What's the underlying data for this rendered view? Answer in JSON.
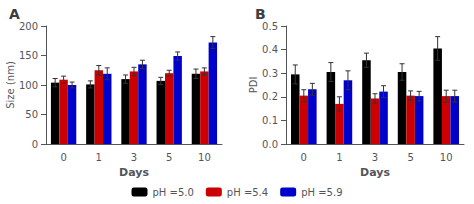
{
  "chart_data": [
    {
      "type": "bar",
      "title": "A",
      "xlabel": "Days",
      "ylabel": "Size (nm)",
      "categories": [
        "0",
        "1",
        "3",
        "5",
        "10"
      ],
      "series": [
        {
          "name": "pH =5.0",
          "color": "#000000",
          "values": [
            104,
            101,
            110,
            107,
            119
          ],
          "errors": [
            7,
            6,
            7,
            6,
            8
          ]
        },
        {
          "name": "pH =5.4",
          "color": "#cc0000",
          "values": [
            109,
            125,
            123,
            120,
            123
          ],
          "errors": [
            6,
            8,
            7,
            5,
            6
          ]
        },
        {
          "name": "pH =5.9",
          "color": "#0000cc",
          "values": [
            100,
            119,
            135,
            149,
            172
          ],
          "errors": [
            5,
            10,
            7,
            7,
            10
          ]
        }
      ],
      "ylim": [
        0,
        200
      ],
      "yticks": [
        0,
        50,
        100,
        150,
        200
      ],
      "grid": false,
      "legend": "bottom"
    },
    {
      "type": "bar",
      "title": "B",
      "xlabel": "Days",
      "ylabel": "PDI",
      "categories": [
        "0",
        "1",
        "3",
        "5",
        "10"
      ],
      "series": [
        {
          "name": "pH =5.0",
          "color": "#000000",
          "values": [
            0.295,
            0.305,
            0.355,
            0.305,
            0.405
          ],
          "errors": [
            0.04,
            0.04,
            0.03,
            0.035,
            0.05
          ]
        },
        {
          "name": "pH =5.4",
          "color": "#cc0000",
          "values": [
            0.205,
            0.17,
            0.193,
            0.205,
            0.203
          ],
          "errors": [
            0.025,
            0.03,
            0.02,
            0.02,
            0.025
          ]
        },
        {
          "name": "pH =5.9",
          "color": "#0000cc",
          "values": [
            0.232,
            0.27,
            0.222,
            0.203,
            0.203
          ],
          "errors": [
            0.025,
            0.04,
            0.025,
            0.02,
            0.025
          ]
        }
      ],
      "ylim": [
        0.0,
        0.5
      ],
      "yticks": [
        {
          "value": 0,
          "label": "0.0"
        },
        0.1,
        0.2,
        0.3,
        0.4,
        0.5
      ],
      "grid": false,
      "legend": "bottom"
    }
  ]
}
